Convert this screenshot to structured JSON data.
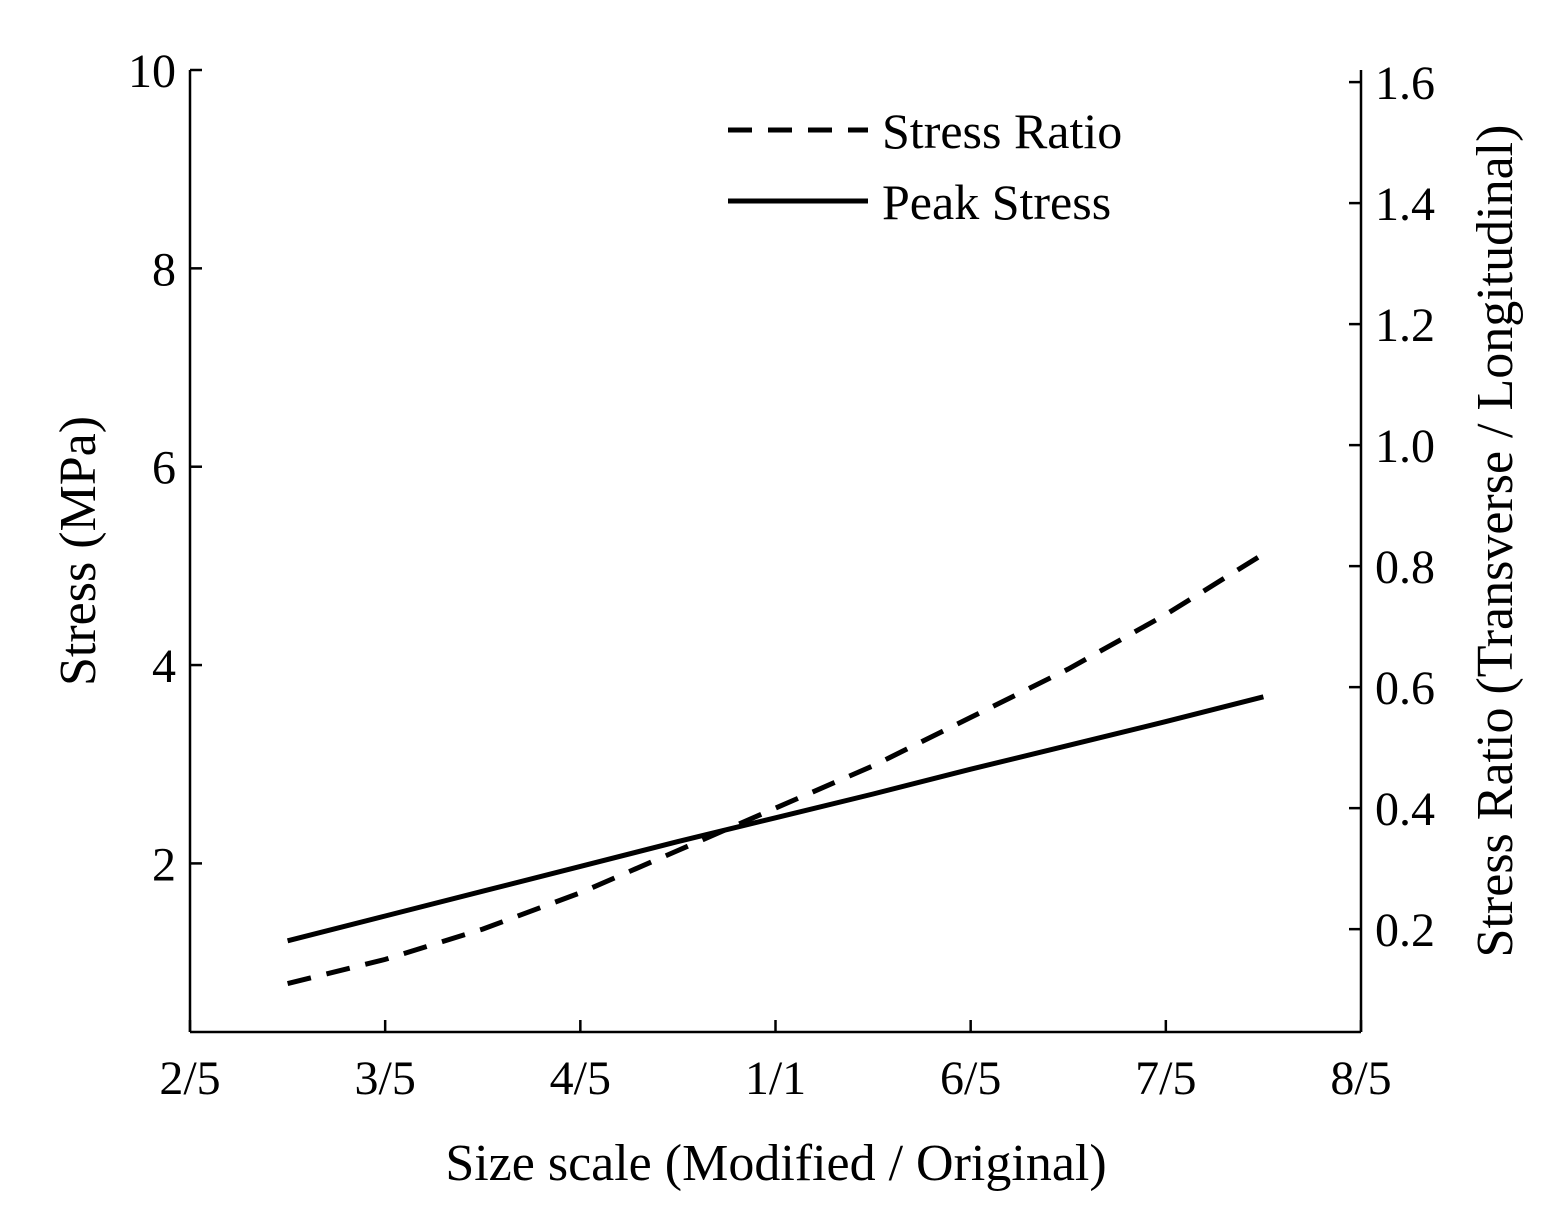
{
  "chart_data": {
    "type": "line",
    "title": "",
    "xlabel": "Size scale (Modified / Original)",
    "ylabel": "Stress (MPa)",
    "y2label": "Stress Ratio (Transverse / Longitudinal)",
    "xlim": [
      0.4,
      1.6
    ],
    "ylim": [
      0.3,
      10
    ],
    "y2lim": [
      0.03,
      1.62
    ],
    "x_ticks": [
      {
        "value": 0.4,
        "label": "2/5"
      },
      {
        "value": 0.6,
        "label": "3/5"
      },
      {
        "value": 0.8,
        "label": "4/5"
      },
      {
        "value": 1.0,
        "label": "1/1"
      },
      {
        "value": 1.2,
        "label": "6/5"
      },
      {
        "value": 1.4,
        "label": "7/5"
      },
      {
        "value": 1.6,
        "label": "8/5"
      }
    ],
    "y_ticks": [
      {
        "value": 2,
        "label": "2"
      },
      {
        "value": 4,
        "label": "4"
      },
      {
        "value": 6,
        "label": "6"
      },
      {
        "value": 8,
        "label": "8"
      },
      {
        "value": 10,
        "label": "10"
      }
    ],
    "y2_ticks": [
      {
        "value": 0.2,
        "label": "0.2"
      },
      {
        "value": 0.4,
        "label": "0.4"
      },
      {
        "value": 0.6,
        "label": "0.6"
      },
      {
        "value": 0.8,
        "label": "0.8"
      },
      {
        "value": 1.0,
        "label": "1.0"
      },
      {
        "value": 1.2,
        "label": "1.2"
      },
      {
        "value": 1.4,
        "label": "1.4"
      },
      {
        "value": 1.6,
        "label": "1.6"
      }
    ],
    "legend_position": "top-center",
    "series": [
      {
        "name": "Stress Ratio",
        "axis": "right",
        "style": "dashed",
        "x": [
          0.5,
          0.6,
          0.7,
          0.8,
          0.9,
          1.0,
          1.1,
          1.2,
          1.3,
          1.4,
          1.5
        ],
        "y": [
          0.11,
          0.15,
          0.2,
          0.26,
          0.33,
          0.4,
          0.47,
          0.55,
          0.63,
          0.72,
          0.82
        ]
      },
      {
        "name": "Peak Stress",
        "axis": "left",
        "style": "solid",
        "x": [
          0.5,
          0.6,
          0.7,
          0.8,
          0.9,
          1.0,
          1.1,
          1.2,
          1.3,
          1.4,
          1.5
        ],
        "y": [
          1.22,
          1.47,
          1.72,
          1.97,
          2.22,
          2.46,
          2.7,
          2.95,
          3.19,
          3.43,
          3.68
        ]
      }
    ]
  }
}
